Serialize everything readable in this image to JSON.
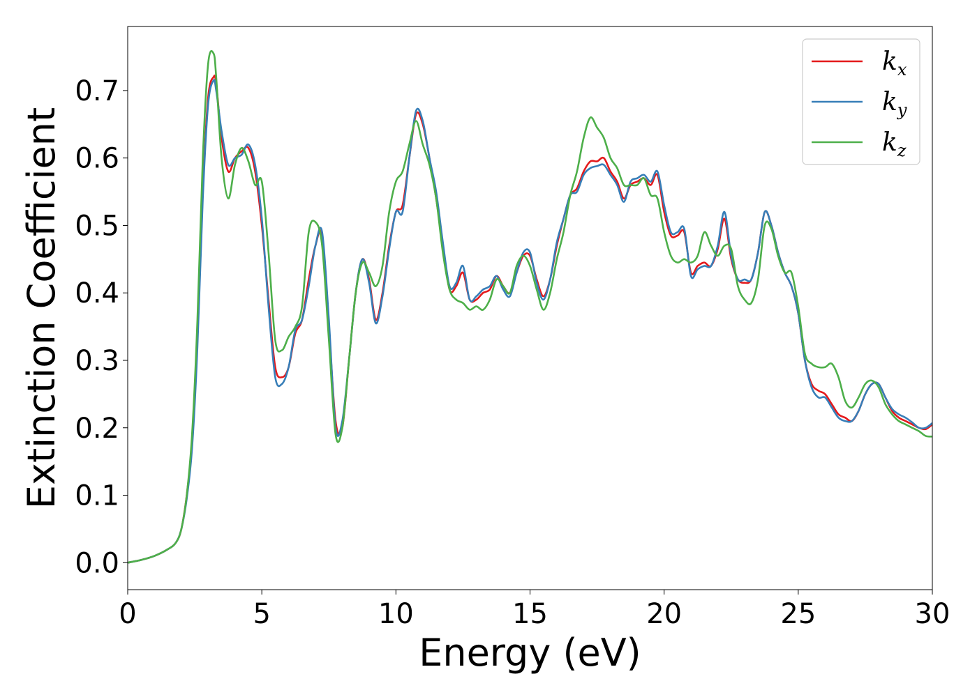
{
  "chart_data": {
    "type": "line",
    "xlabel": "Energy (eV)",
    "ylabel": "Extinction Coefficient",
    "xlim": [
      0,
      30
    ],
    "ylim": [
      -0.04,
      0.795
    ],
    "xticks": [
      0,
      5,
      10,
      15,
      20,
      25,
      30
    ],
    "yticks": [
      0.0,
      0.1,
      0.2,
      0.3,
      0.4,
      0.5,
      0.6,
      0.7
    ],
    "xtick_labels": [
      "0",
      "5",
      "10",
      "15",
      "20",
      "25",
      "30"
    ],
    "ytick_labels": [
      "0.0",
      "0.1",
      "0.2",
      "0.3",
      "0.4",
      "0.5",
      "0.6",
      "0.7"
    ],
    "grid": false,
    "legend_position": "top-right",
    "series": [
      {
        "name": "kx",
        "legend_base": "k",
        "legend_sub": "x",
        "color": "#e41a1c",
        "x": [
          0,
          0.5,
          1.0,
          1.5,
          1.8,
          2.0,
          2.2,
          2.4,
          2.6,
          2.8,
          3.0,
          3.2,
          3.3,
          3.5,
          3.75,
          4.0,
          4.25,
          4.5,
          4.75,
          5.0,
          5.25,
          5.5,
          5.75,
          6.0,
          6.25,
          6.5,
          6.75,
          7.0,
          7.25,
          7.5,
          7.75,
          8.0,
          8.25,
          8.5,
          8.75,
          9.0,
          9.25,
          9.5,
          9.75,
          10.0,
          10.25,
          10.5,
          10.75,
          11.0,
          11.25,
          11.5,
          11.75,
          12.0,
          12.25,
          12.5,
          12.75,
          13.0,
          13.25,
          13.5,
          13.75,
          14.0,
          14.25,
          14.5,
          14.75,
          15.0,
          15.25,
          15.5,
          15.75,
          16.0,
          16.25,
          16.5,
          16.75,
          17.0,
          17.25,
          17.5,
          17.75,
          18.0,
          18.25,
          18.5,
          18.75,
          19.0,
          19.25,
          19.5,
          19.75,
          20.0,
          20.25,
          20.5,
          20.75,
          21.0,
          21.25,
          21.5,
          21.75,
          22.0,
          22.25,
          22.5,
          22.75,
          23.0,
          23.25,
          23.5,
          23.75,
          24.0,
          24.25,
          24.5,
          24.75,
          25.0,
          25.25,
          25.5,
          25.75,
          26.0,
          26.25,
          26.5,
          26.75,
          27.0,
          27.25,
          27.5,
          27.75,
          28.0,
          28.25,
          28.5,
          28.75,
          29.0,
          29.25,
          29.5,
          29.75,
          30.0
        ],
        "y": [
          0.0,
          0.004,
          0.01,
          0.02,
          0.03,
          0.05,
          0.1,
          0.18,
          0.33,
          0.55,
          0.69,
          0.72,
          0.71,
          0.63,
          0.58,
          0.6,
          0.61,
          0.615,
          0.58,
          0.5,
          0.39,
          0.29,
          0.275,
          0.29,
          0.34,
          0.36,
          0.42,
          0.47,
          0.485,
          0.35,
          0.21,
          0.2,
          0.3,
          0.4,
          0.45,
          0.42,
          0.36,
          0.4,
          0.47,
          0.52,
          0.53,
          0.6,
          0.665,
          0.65,
          0.6,
          0.54,
          0.47,
          0.405,
          0.41,
          0.43,
          0.39,
          0.39,
          0.4,
          0.405,
          0.425,
          0.41,
          0.4,
          0.43,
          0.455,
          0.455,
          0.42,
          0.395,
          0.42,
          0.47,
          0.51,
          0.545,
          0.555,
          0.58,
          0.595,
          0.595,
          0.6,
          0.58,
          0.565,
          0.54,
          0.56,
          0.565,
          0.57,
          0.56,
          0.575,
          0.52,
          0.485,
          0.485,
          0.49,
          0.43,
          0.44,
          0.445,
          0.44,
          0.465,
          0.51,
          0.45,
          0.42,
          0.415,
          0.42,
          0.46,
          0.52,
          0.5,
          0.46,
          0.43,
          0.41,
          0.37,
          0.3,
          0.265,
          0.255,
          0.25,
          0.235,
          0.22,
          0.215,
          0.21,
          0.225,
          0.25,
          0.265,
          0.265,
          0.245,
          0.225,
          0.215,
          0.21,
          0.205,
          0.2,
          0.198,
          0.205
        ]
      },
      {
        "name": "ky",
        "legend_base": "k",
        "legend_sub": "y",
        "color": "#377eb8",
        "x": [
          0,
          0.5,
          1.0,
          1.5,
          1.8,
          2.0,
          2.2,
          2.4,
          2.6,
          2.8,
          3.0,
          3.2,
          3.3,
          3.5,
          3.75,
          4.0,
          4.25,
          4.5,
          4.75,
          5.0,
          5.25,
          5.5,
          5.75,
          6.0,
          6.25,
          6.5,
          6.75,
          7.0,
          7.25,
          7.5,
          7.75,
          8.0,
          8.25,
          8.5,
          8.75,
          9.0,
          9.25,
          9.5,
          9.75,
          10.0,
          10.25,
          10.5,
          10.75,
          11.0,
          11.25,
          11.5,
          11.75,
          12.0,
          12.25,
          12.5,
          12.75,
          13.0,
          13.25,
          13.5,
          13.75,
          14.0,
          14.25,
          14.5,
          14.75,
          15.0,
          15.25,
          15.5,
          15.75,
          16.0,
          16.25,
          16.5,
          16.75,
          17.0,
          17.25,
          17.5,
          17.75,
          18.0,
          18.25,
          18.5,
          18.75,
          19.0,
          19.25,
          19.5,
          19.75,
          20.0,
          20.25,
          20.5,
          20.75,
          21.0,
          21.25,
          21.5,
          21.75,
          22.0,
          22.25,
          22.5,
          22.75,
          23.0,
          23.25,
          23.5,
          23.75,
          24.0,
          24.25,
          24.5,
          24.75,
          25.0,
          25.25,
          25.5,
          25.75,
          26.0,
          26.25,
          26.5,
          26.75,
          27.0,
          27.25,
          27.5,
          27.75,
          28.0,
          28.25,
          28.5,
          28.75,
          29.0,
          29.25,
          29.5,
          29.75,
          30.0
        ],
        "y": [
          0.0,
          0.004,
          0.01,
          0.02,
          0.03,
          0.05,
          0.095,
          0.17,
          0.32,
          0.54,
          0.68,
          0.715,
          0.7,
          0.64,
          0.59,
          0.6,
          0.605,
          0.62,
          0.59,
          0.51,
          0.38,
          0.275,
          0.265,
          0.29,
          0.345,
          0.36,
          0.41,
          0.47,
          0.49,
          0.36,
          0.2,
          0.21,
          0.3,
          0.4,
          0.45,
          0.415,
          0.355,
          0.395,
          0.465,
          0.52,
          0.52,
          0.6,
          0.67,
          0.655,
          0.6,
          0.55,
          0.475,
          0.41,
          0.415,
          0.44,
          0.39,
          0.395,
          0.405,
          0.41,
          0.425,
          0.405,
          0.395,
          0.43,
          0.46,
          0.46,
          0.415,
          0.39,
          0.42,
          0.475,
          0.51,
          0.545,
          0.55,
          0.575,
          0.585,
          0.588,
          0.59,
          0.575,
          0.56,
          0.535,
          0.565,
          0.57,
          0.575,
          0.565,
          0.58,
          0.53,
          0.49,
          0.49,
          0.495,
          0.425,
          0.435,
          0.44,
          0.44,
          0.47,
          0.52,
          0.455,
          0.42,
          0.42,
          0.42,
          0.46,
          0.52,
          0.5,
          0.46,
          0.43,
          0.41,
          0.37,
          0.3,
          0.26,
          0.245,
          0.245,
          0.23,
          0.215,
          0.21,
          0.21,
          0.225,
          0.25,
          0.265,
          0.265,
          0.245,
          0.228,
          0.22,
          0.215,
          0.208,
          0.2,
          0.2,
          0.207
        ]
      },
      {
        "name": "kz",
        "legend_base": "k",
        "legend_sub": "z",
        "color": "#4daf4a",
        "x": [
          0,
          0.5,
          1.0,
          1.5,
          1.8,
          2.0,
          2.2,
          2.4,
          2.6,
          2.8,
          3.0,
          3.2,
          3.3,
          3.5,
          3.75,
          4.0,
          4.25,
          4.5,
          4.75,
          5.0,
          5.25,
          5.5,
          5.75,
          6.0,
          6.25,
          6.5,
          6.75,
          7.0,
          7.25,
          7.5,
          7.75,
          8.0,
          8.25,
          8.5,
          8.75,
          9.0,
          9.25,
          9.5,
          9.75,
          10.0,
          10.25,
          10.5,
          10.75,
          11.0,
          11.25,
          11.5,
          11.75,
          12.0,
          12.25,
          12.5,
          12.75,
          13.0,
          13.25,
          13.5,
          13.75,
          14.0,
          14.25,
          14.5,
          14.75,
          15.0,
          15.25,
          15.5,
          15.75,
          16.0,
          16.25,
          16.5,
          16.75,
          17.0,
          17.25,
          17.5,
          17.75,
          18.0,
          18.25,
          18.5,
          18.75,
          19.0,
          19.25,
          19.5,
          19.75,
          20.0,
          20.25,
          20.5,
          20.75,
          21.0,
          21.25,
          21.5,
          21.75,
          22.0,
          22.25,
          22.5,
          22.75,
          23.0,
          23.25,
          23.5,
          23.75,
          24.0,
          24.25,
          24.5,
          24.75,
          25.0,
          25.25,
          25.5,
          25.75,
          26.0,
          26.25,
          26.5,
          26.75,
          27.0,
          27.25,
          27.5,
          27.75,
          28.0,
          28.25,
          28.5,
          28.75,
          29.0,
          29.25,
          29.5,
          29.75,
          30.0
        ],
        "y": [
          0.0,
          0.004,
          0.01,
          0.02,
          0.03,
          0.05,
          0.1,
          0.19,
          0.36,
          0.6,
          0.74,
          0.755,
          0.72,
          0.6,
          0.54,
          0.59,
          0.615,
          0.595,
          0.56,
          0.565,
          0.46,
          0.33,
          0.315,
          0.335,
          0.35,
          0.38,
          0.49,
          0.505,
          0.47,
          0.33,
          0.19,
          0.2,
          0.3,
          0.4,
          0.445,
          0.43,
          0.41,
          0.44,
          0.52,
          0.565,
          0.58,
          0.62,
          0.655,
          0.62,
          0.59,
          0.54,
          0.46,
          0.405,
          0.39,
          0.385,
          0.375,
          0.38,
          0.375,
          0.39,
          0.42,
          0.41,
          0.4,
          0.44,
          0.455,
          0.44,
          0.405,
          0.375,
          0.4,
          0.45,
          0.49,
          0.545,
          0.58,
          0.63,
          0.66,
          0.645,
          0.63,
          0.6,
          0.585,
          0.56,
          0.56,
          0.56,
          0.57,
          0.545,
          0.54,
          0.49,
          0.455,
          0.445,
          0.45,
          0.445,
          0.455,
          0.49,
          0.47,
          0.455,
          0.47,
          0.465,
          0.41,
          0.39,
          0.385,
          0.42,
          0.5,
          0.495,
          0.455,
          0.43,
          0.43,
          0.38,
          0.31,
          0.295,
          0.29,
          0.29,
          0.295,
          0.275,
          0.24,
          0.23,
          0.245,
          0.265,
          0.27,
          0.26,
          0.235,
          0.22,
          0.21,
          0.205,
          0.2,
          0.195,
          0.188,
          0.187
        ]
      }
    ]
  }
}
